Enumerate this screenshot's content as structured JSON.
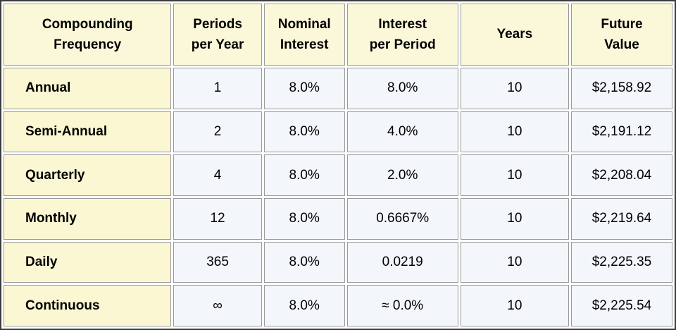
{
  "colors": {
    "header_bg": "#FBF8D9",
    "label_col_bg": "#FBF7D2",
    "data_cell_bg": "#F3F6FA",
    "cell_border": "#9A9A9A",
    "outer_border": "#3B3B3B",
    "text": "#000000"
  },
  "headers": [
    "Compounding\nFrequency",
    "Periods\nper Year",
    "Nominal\nInterest",
    "Interest\nper Period",
    "Years",
    "Future\nValue"
  ],
  "chart_data": {
    "type": "table",
    "columns": [
      "Compounding Frequency",
      "Periods per Year",
      "Nominal Interest",
      "Interest per Period",
      "Years",
      "Future Value"
    ],
    "rows": [
      [
        "Annual",
        "1",
        "8.0%",
        "8.0%",
        "10",
        "$2,158.92"
      ],
      [
        "Semi-Annual",
        "2",
        "8.0%",
        "4.0%",
        "10",
        "$2,191.12"
      ],
      [
        "Quarterly",
        "4",
        "8.0%",
        "2.0%",
        "10",
        "$2,208.04"
      ],
      [
        "Monthly",
        "12",
        "8.0%",
        "0.6667%",
        "10",
        "$2,219.64"
      ],
      [
        "Daily",
        "365",
        "8.0%",
        "0.0219",
        "10",
        "$2,225.35"
      ],
      [
        "Continuous",
        "∞",
        "8.0%",
        "≈ 0.0%",
        "10",
        "$2,225.54"
      ]
    ]
  }
}
